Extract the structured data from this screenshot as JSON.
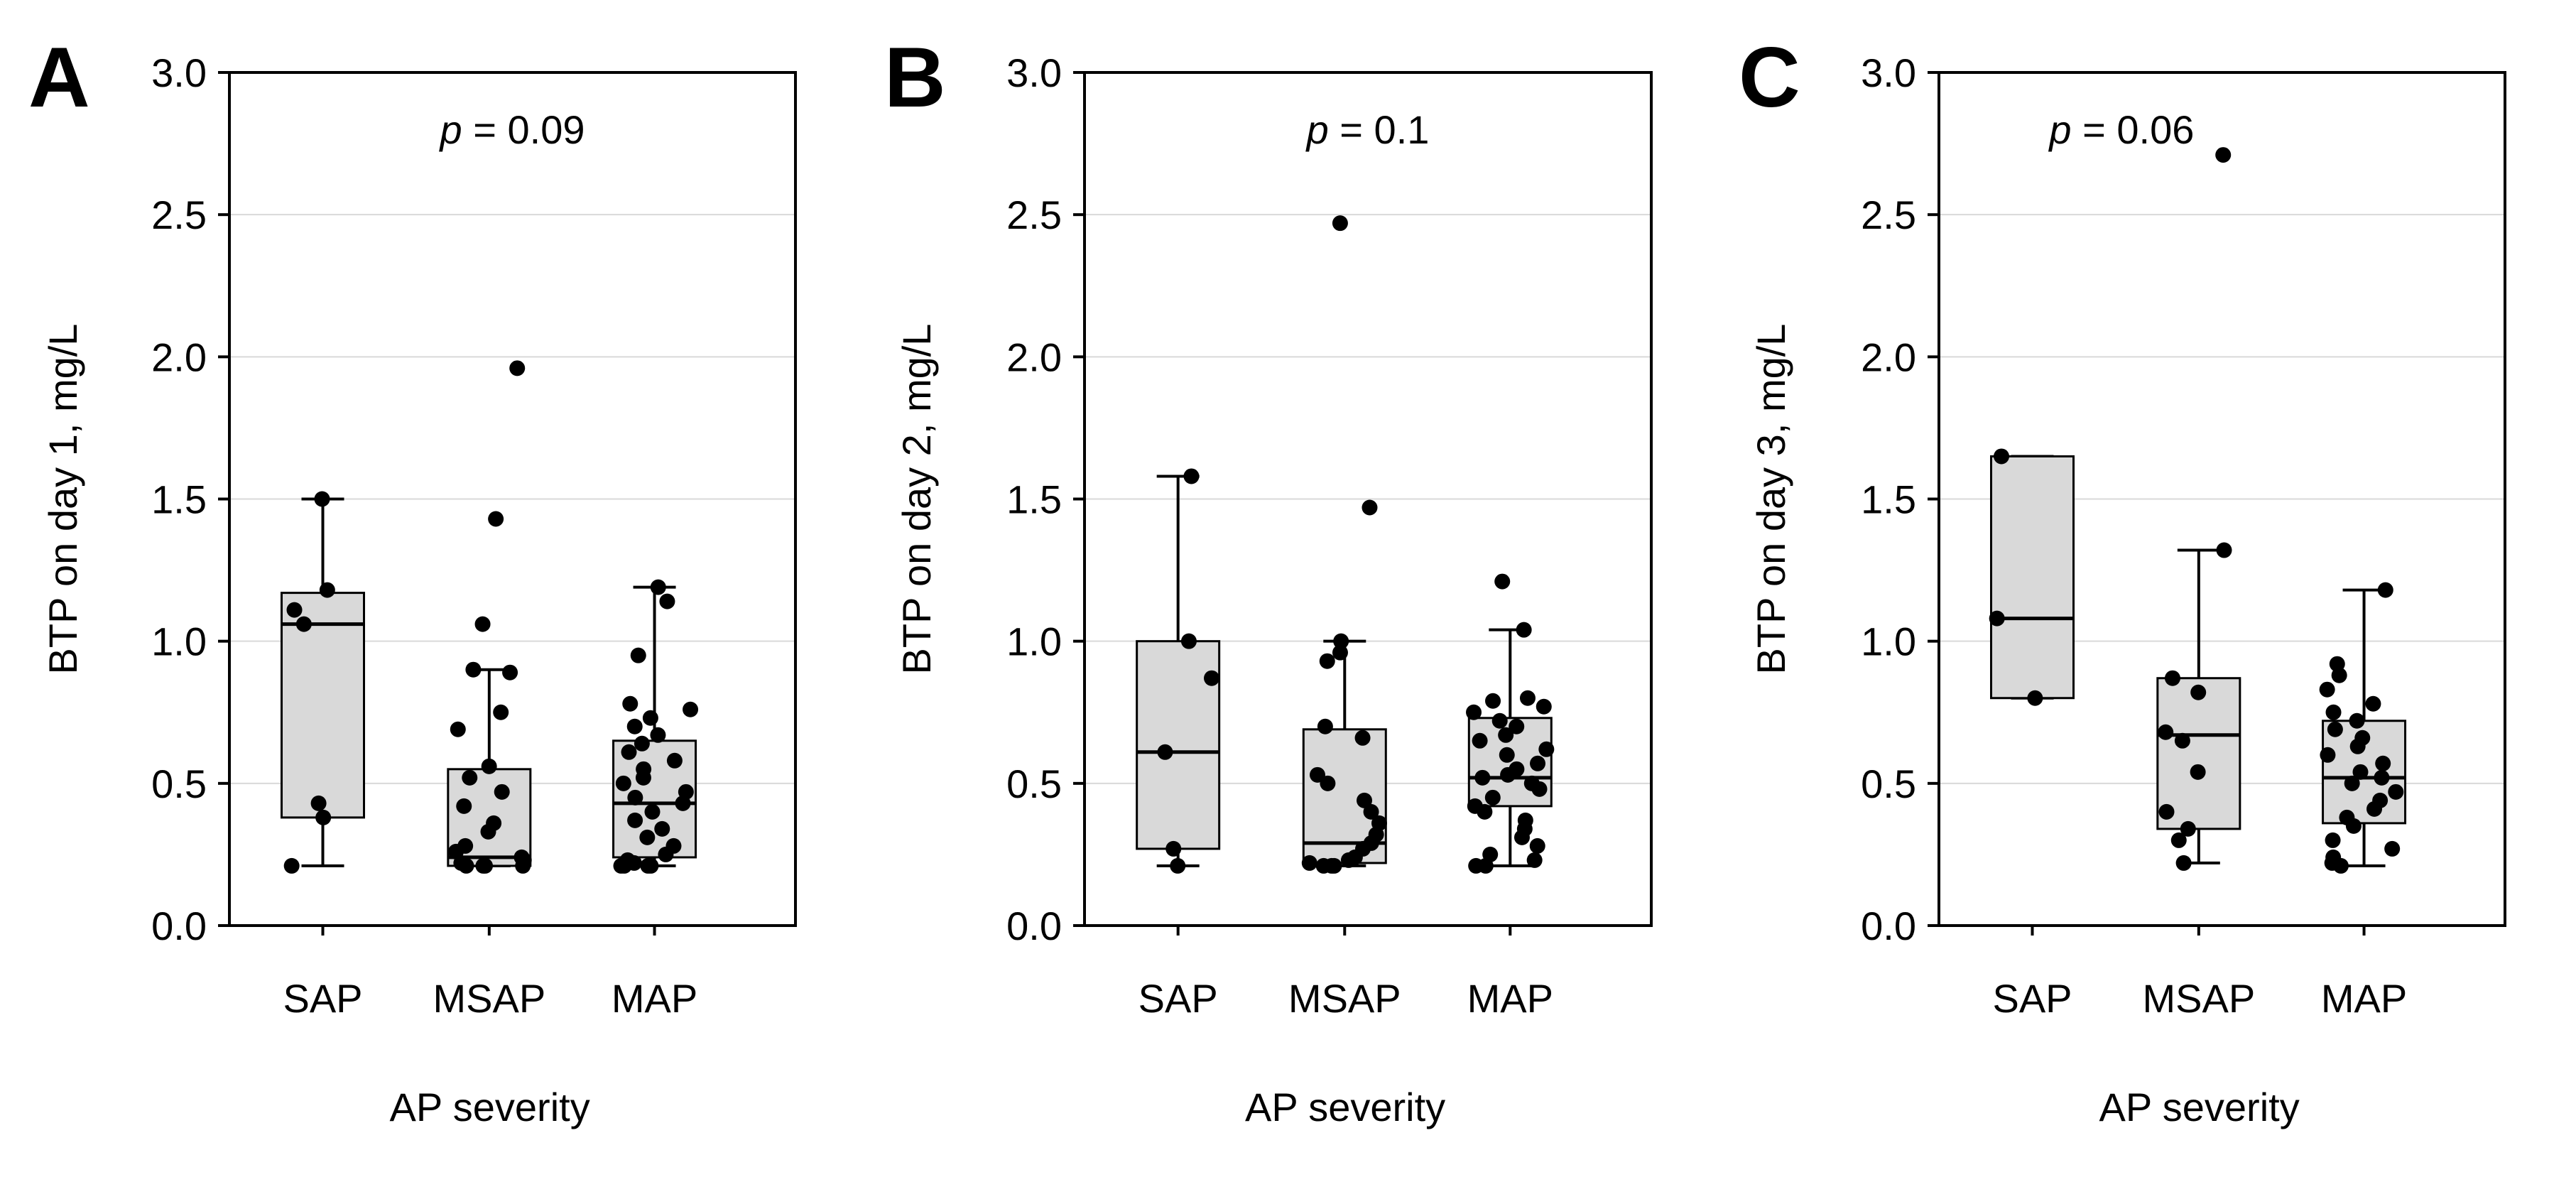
{
  "chart_data": [
    {
      "type": "box",
      "panel_label": "A",
      "title": "",
      "xlabel": "AP severity",
      "ylabel": "BTP on day 1, mg/L",
      "ylim": [
        0,
        3.0
      ],
      "yticks": [
        0.0,
        0.5,
        1.0,
        1.5,
        2.0,
        2.5,
        3.0
      ],
      "ytick_labels": [
        "0.0",
        "0.5",
        "1.0",
        "1.5",
        "2.0",
        "2.5",
        "3.0"
      ],
      "grid": "horizontal",
      "annotation": {
        "p_symbol": "p",
        "p_text": " = 0.09",
        "position": "top-center"
      },
      "categories": [
        "SAP",
        "MSAP",
        "MAP"
      ],
      "boxes": [
        {
          "q1": 0.38,
          "median": 1.06,
          "q3": 1.17,
          "whisker_low": 0.21,
          "whisker_high": 1.5
        },
        {
          "q1": 0.21,
          "median": 0.24,
          "q3": 0.55,
          "whisker_low": 0.21,
          "whisker_high": 0.9
        },
        {
          "q1": 0.24,
          "median": 0.43,
          "q3": 0.65,
          "whisker_low": 0.21,
          "whisker_high": 1.19
        }
      ],
      "points": [
        [
          1.5,
          1.18,
          1.11,
          1.06,
          0.43,
          0.38,
          0.21
        ],
        [
          1.96,
          1.43,
          1.06,
          0.9,
          0.89,
          0.75,
          0.69,
          0.56,
          0.52,
          0.47,
          0.42,
          0.36,
          0.33,
          0.28,
          0.26,
          0.24,
          0.23,
          0.22,
          0.21,
          0.21,
          0.21,
          0.21
        ],
        [
          1.19,
          1.14,
          0.95,
          0.78,
          0.76,
          0.73,
          0.7,
          0.67,
          0.64,
          0.61,
          0.58,
          0.55,
          0.52,
          0.5,
          0.47,
          0.45,
          0.43,
          0.4,
          0.37,
          0.34,
          0.31,
          0.28,
          0.25,
          0.23,
          0.22,
          0.21,
          0.21,
          0.21,
          0.21
        ]
      ]
    },
    {
      "type": "box",
      "panel_label": "B",
      "title": "",
      "xlabel": "AP severity",
      "ylabel": "BTP on day 2, mg/L",
      "ylim": [
        0,
        3.0
      ],
      "yticks": [
        0.0,
        0.5,
        1.0,
        1.5,
        2.0,
        2.5,
        3.0
      ],
      "ytick_labels": [
        "0.0",
        "0.5",
        "1.0",
        "1.5",
        "2.0",
        "2.5",
        "3.0"
      ],
      "grid": "horizontal",
      "annotation": {
        "p_symbol": "p",
        "p_text": " = 0.1",
        "position": "top-center"
      },
      "categories": [
        "SAP",
        "MSAP",
        "MAP"
      ],
      "boxes": [
        {
          "q1": 0.27,
          "median": 0.61,
          "q3": 1.0,
          "whisker_low": 0.21,
          "whisker_high": 1.58
        },
        {
          "q1": 0.22,
          "median": 0.29,
          "q3": 0.69,
          "whisker_low": 0.21,
          "whisker_high": 1.0
        },
        {
          "q1": 0.42,
          "median": 0.52,
          "q3": 0.73,
          "whisker_low": 0.21,
          "whisker_high": 1.04
        }
      ],
      "points": [
        [
          1.58,
          1.0,
          0.87,
          0.61,
          0.27,
          0.21
        ],
        [
          2.47,
          1.47,
          1.0,
          0.96,
          0.93,
          0.7,
          0.66,
          0.53,
          0.5,
          0.44,
          0.4,
          0.36,
          0.32,
          0.29,
          0.27,
          0.24,
          0.23,
          0.22,
          0.21,
          0.21,
          0.21
        ],
        [
          1.21,
          1.04,
          0.8,
          0.79,
          0.77,
          0.75,
          0.72,
          0.7,
          0.67,
          0.65,
          0.62,
          0.6,
          0.57,
          0.55,
          0.53,
          0.52,
          0.5,
          0.48,
          0.45,
          0.42,
          0.4,
          0.37,
          0.34,
          0.31,
          0.28,
          0.25,
          0.23,
          0.21,
          0.21
        ]
      ]
    },
    {
      "type": "box",
      "panel_label": "C",
      "title": "",
      "xlabel": "AP severity",
      "ylabel": "BTP on day 3, mg/L",
      "ylim": [
        0,
        3.0
      ],
      "yticks": [
        0.0,
        0.5,
        1.0,
        1.5,
        2.0,
        2.5,
        3.0
      ],
      "ytick_labels": [
        "0.0",
        "0.5",
        "1.0",
        "1.5",
        "2.0",
        "2.5",
        "3.0"
      ],
      "grid": "horizontal",
      "annotation": {
        "p_symbol": "p",
        "p_text": " = 0.06",
        "position": "top-left"
      },
      "categories": [
        "SAP",
        "MSAP",
        "MAP"
      ],
      "boxes": [
        {
          "q1": 0.8,
          "median": 1.08,
          "q3": 1.65,
          "whisker_low": 0.8,
          "whisker_high": 1.65
        },
        {
          "q1": 0.34,
          "median": 0.67,
          "q3": 0.87,
          "whisker_low": 0.22,
          "whisker_high": 1.32
        },
        {
          "q1": 0.36,
          "median": 0.52,
          "q3": 0.72,
          "whisker_low": 0.21,
          "whisker_high": 1.18
        }
      ],
      "points": [
        [
          1.65,
          1.08,
          0.8
        ],
        [
          2.71,
          1.32,
          0.87,
          0.82,
          0.68,
          0.65,
          0.54,
          0.4,
          0.34,
          0.3,
          0.22
        ],
        [
          1.18,
          0.92,
          0.88,
          0.83,
          0.78,
          0.75,
          0.72,
          0.69,
          0.66,
          0.63,
          0.6,
          0.57,
          0.54,
          0.52,
          0.5,
          0.47,
          0.44,
          0.41,
          0.38,
          0.35,
          0.3,
          0.27,
          0.24,
          0.22,
          0.21
        ]
      ]
    }
  ]
}
